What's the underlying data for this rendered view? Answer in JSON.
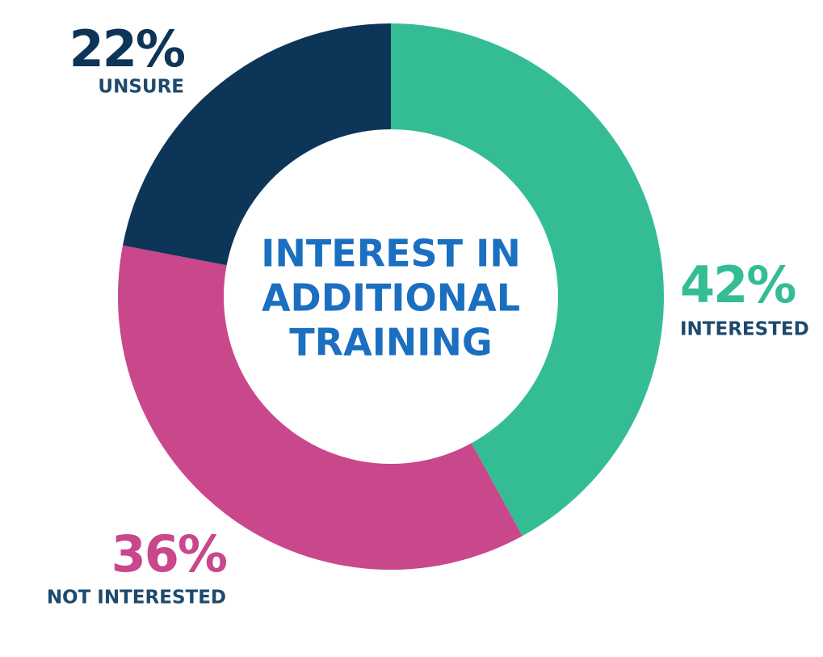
{
  "chart_data": {
    "type": "donut",
    "title": [
      "INTEREST IN",
      "ADDITIONAL",
      "TRAINING"
    ],
    "categories": [
      "INTERESTED",
      "NOT INTERESTED",
      "UNSURE"
    ],
    "values": [
      42,
      36,
      22
    ],
    "value_labels": [
      "42%",
      "36%",
      "22%"
    ],
    "colors": [
      "#34bd95",
      "#c9478b",
      "#0d3558"
    ]
  }
}
